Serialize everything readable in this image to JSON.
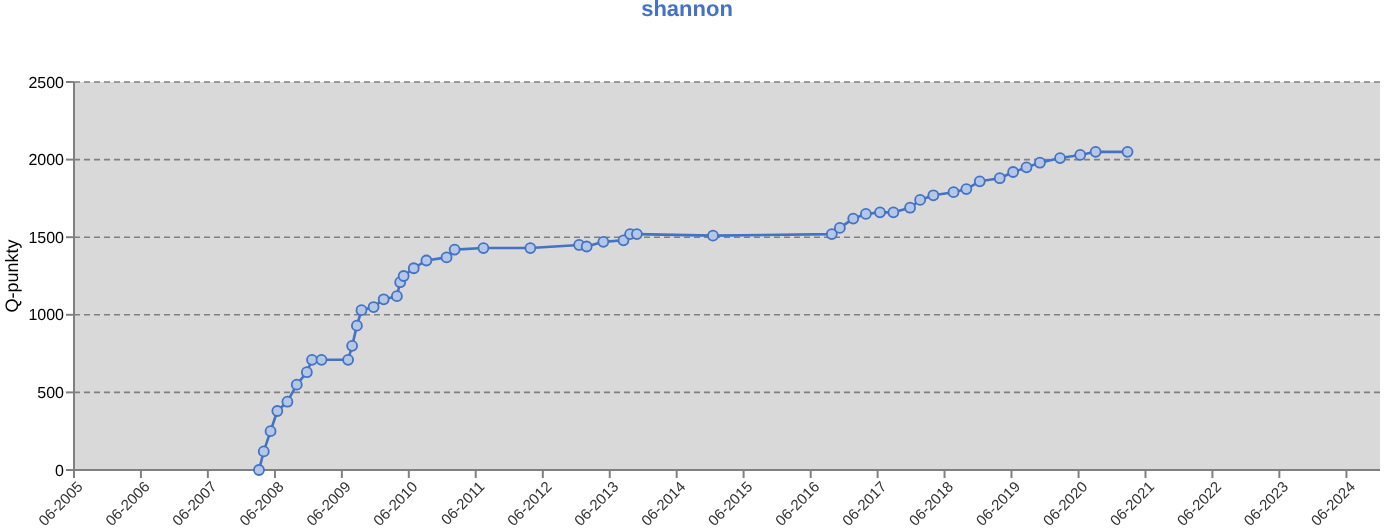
{
  "chart_data": {
    "type": "line",
    "title": "shannon",
    "ylabel": "Q-punkty",
    "x": [
      "2008-03-06",
      "2008-04-01",
      "2008-05-08",
      "2008-06-14",
      "2008-08-08",
      "2008-09-28",
      "2008-11-22",
      "2008-12-20",
      "2009-02-10",
      "2009-07-05",
      "2009-07-27",
      "2009-08-22",
      "2009-09-16",
      "2009-11-21",
      "2010-01-15",
      "2010-03-28",
      "2010-04-15",
      "2010-05-04",
      "2010-06-28",
      "2010-09-05",
      "2010-12-24",
      "2011-02-06",
      "2011-07-13",
      "2012-03-25",
      "2012-12-16",
      "2013-01-26",
      "2013-04-27",
      "2013-08-15",
      "2013-09-20",
      "2013-10-27",
      "2014-12-16",
      "2016-09-24",
      "2016-11-07",
      "2017-01-19",
      "2017-03-29",
      "2017-06-14",
      "2017-08-26",
      "2017-11-25",
      "2018-01-19",
      "2018-04-01",
      "2018-07-20",
      "2018-09-28",
      "2018-12-10",
      "2019-03-29",
      "2019-06-10",
      "2019-08-22",
      "2019-11-03",
      "2020-02-21",
      "2020-06-10",
      "2020-09-02",
      "2021-02-23"
    ],
    "series": [
      {
        "color": "#4472c4",
        "values": [
          0,
          120,
          250,
          380,
          440,
          550,
          630,
          710,
          710,
          710,
          800,
          930,
          1030,
          1050,
          1100,
          1120,
          1210,
          1250,
          1300,
          1350,
          1370,
          1420,
          1430,
          1430,
          1450,
          1440,
          1470,
          1480,
          1520,
          1520,
          1510,
          1520,
          1560,
          1620,
          1650,
          1660,
          1660,
          1690,
          1740,
          1770,
          1790,
          1810,
          1860,
          1880,
          1920,
          1950,
          1980,
          2010,
          2030,
          2050,
          2050
        ]
      }
    ],
    "xlim": [
      "2005-06-01",
      "2024-12-01"
    ],
    "xticks": [
      {
        "value": "2005-06-01",
        "label": "06-2005"
      },
      {
        "value": "2006-06-01",
        "label": "06-2006"
      },
      {
        "value": "2007-06-01",
        "label": "06-2007"
      },
      {
        "value": "2008-06-01",
        "label": "06-2008"
      },
      {
        "value": "2009-06-01",
        "label": "06-2009"
      },
      {
        "value": "2010-06-01",
        "label": "06-2010"
      },
      {
        "value": "2011-06-01",
        "label": "06-2011"
      },
      {
        "value": "2012-06-01",
        "label": "06-2012"
      },
      {
        "value": "2013-06-01",
        "label": "06-2013"
      },
      {
        "value": "2014-06-01",
        "label": "06-2014"
      },
      {
        "value": "2015-06-01",
        "label": "06-2015"
      },
      {
        "value": "2016-06-01",
        "label": "06-2016"
      },
      {
        "value": "2017-06-01",
        "label": "06-2017"
      },
      {
        "value": "2018-06-01",
        "label": "06-2018"
      },
      {
        "value": "2019-06-01",
        "label": "06-2019"
      },
      {
        "value": "2020-06-01",
        "label": "06-2020"
      },
      {
        "value": "2021-06-01",
        "label": "06-2021"
      },
      {
        "value": "2022-06-01",
        "label": "06-2022"
      },
      {
        "value": "2023-06-01",
        "label": "06-2023"
      },
      {
        "value": "2024-06-01",
        "label": "06-2024"
      }
    ],
    "ylim": [
      0,
      2500
    ],
    "yticks": [
      0,
      500,
      1000,
      1500,
      2000,
      2500
    ],
    "grid": "y",
    "marker": "circle",
    "line_style": "solid"
  }
}
